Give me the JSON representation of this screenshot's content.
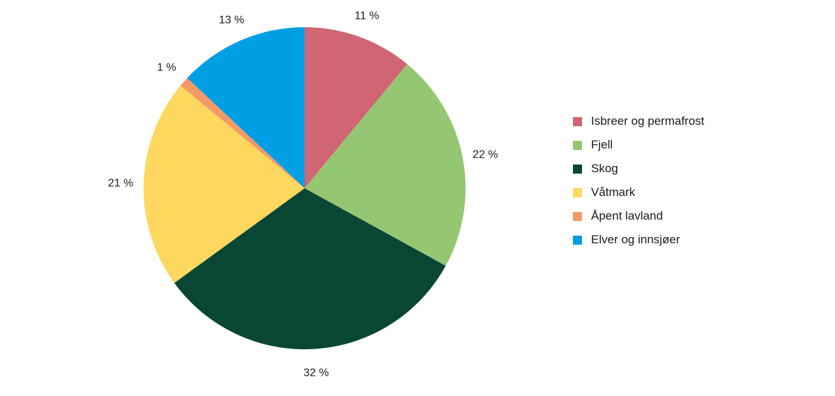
{
  "chart_data": {
    "type": "pie",
    "title": "",
    "start": "top",
    "direction": "clockwise",
    "legend_position": "right",
    "slices": [
      {
        "name": "Isbreer og permafrost",
        "value": 11,
        "label": "11 %",
        "color": "#d06673"
      },
      {
        "name": "Fjell",
        "value": 22,
        "label": "22 %",
        "color": "#95c672"
      },
      {
        "name": "Skog",
        "value": 32,
        "label": "32 %",
        "color": "#094634"
      },
      {
        "name": "Våtmark",
        "value": 21,
        "label": "21 %",
        "color": "#fed75e"
      },
      {
        "name": "Åpent lavland",
        "value": 1,
        "label": "1 %",
        "color": "#f49a69"
      },
      {
        "name": "Elver og innsjøer",
        "value": 13,
        "label": "13 %",
        "color": "#009fe3"
      }
    ]
  }
}
